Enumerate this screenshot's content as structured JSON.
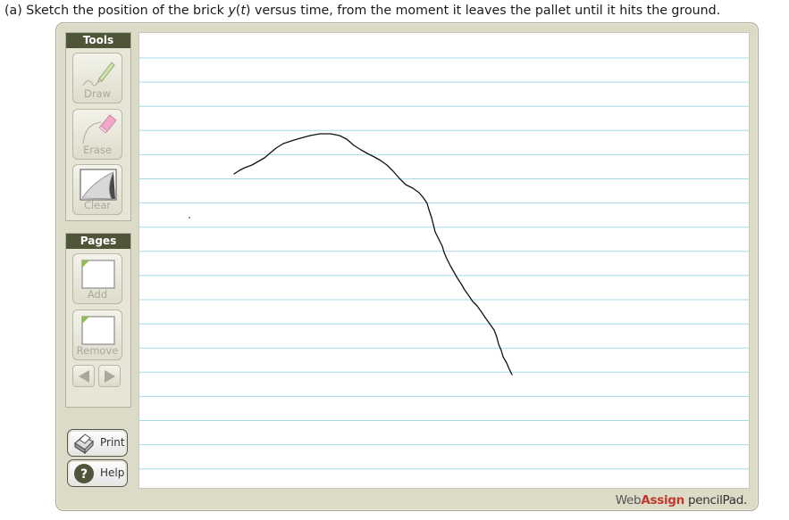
{
  "question": {
    "prefix": "(a) Sketch the position of the brick ",
    "var": "y",
    "paren_open": "(",
    "tvar": "t",
    "rest": ") versus time, from the moment it leaves the pallet until it hits the ground."
  },
  "tools": {
    "header": "Tools",
    "draw_label": "Draw",
    "erase_label": "Erase",
    "clear_label": "Clear"
  },
  "pages": {
    "header": "Pages",
    "add_label": "Add",
    "remove_label": "Remove"
  },
  "actions": {
    "print_label": "Print",
    "help_label": "Help"
  },
  "brand": {
    "web": "Web",
    "assign": "Assign",
    "suffix": "pencilPad."
  },
  "colors": {
    "panel_header": "#4e5539",
    "paper_line": "#a8dbe6",
    "brand_accent": "#c0392b",
    "frame": "#dcdbc8"
  }
}
